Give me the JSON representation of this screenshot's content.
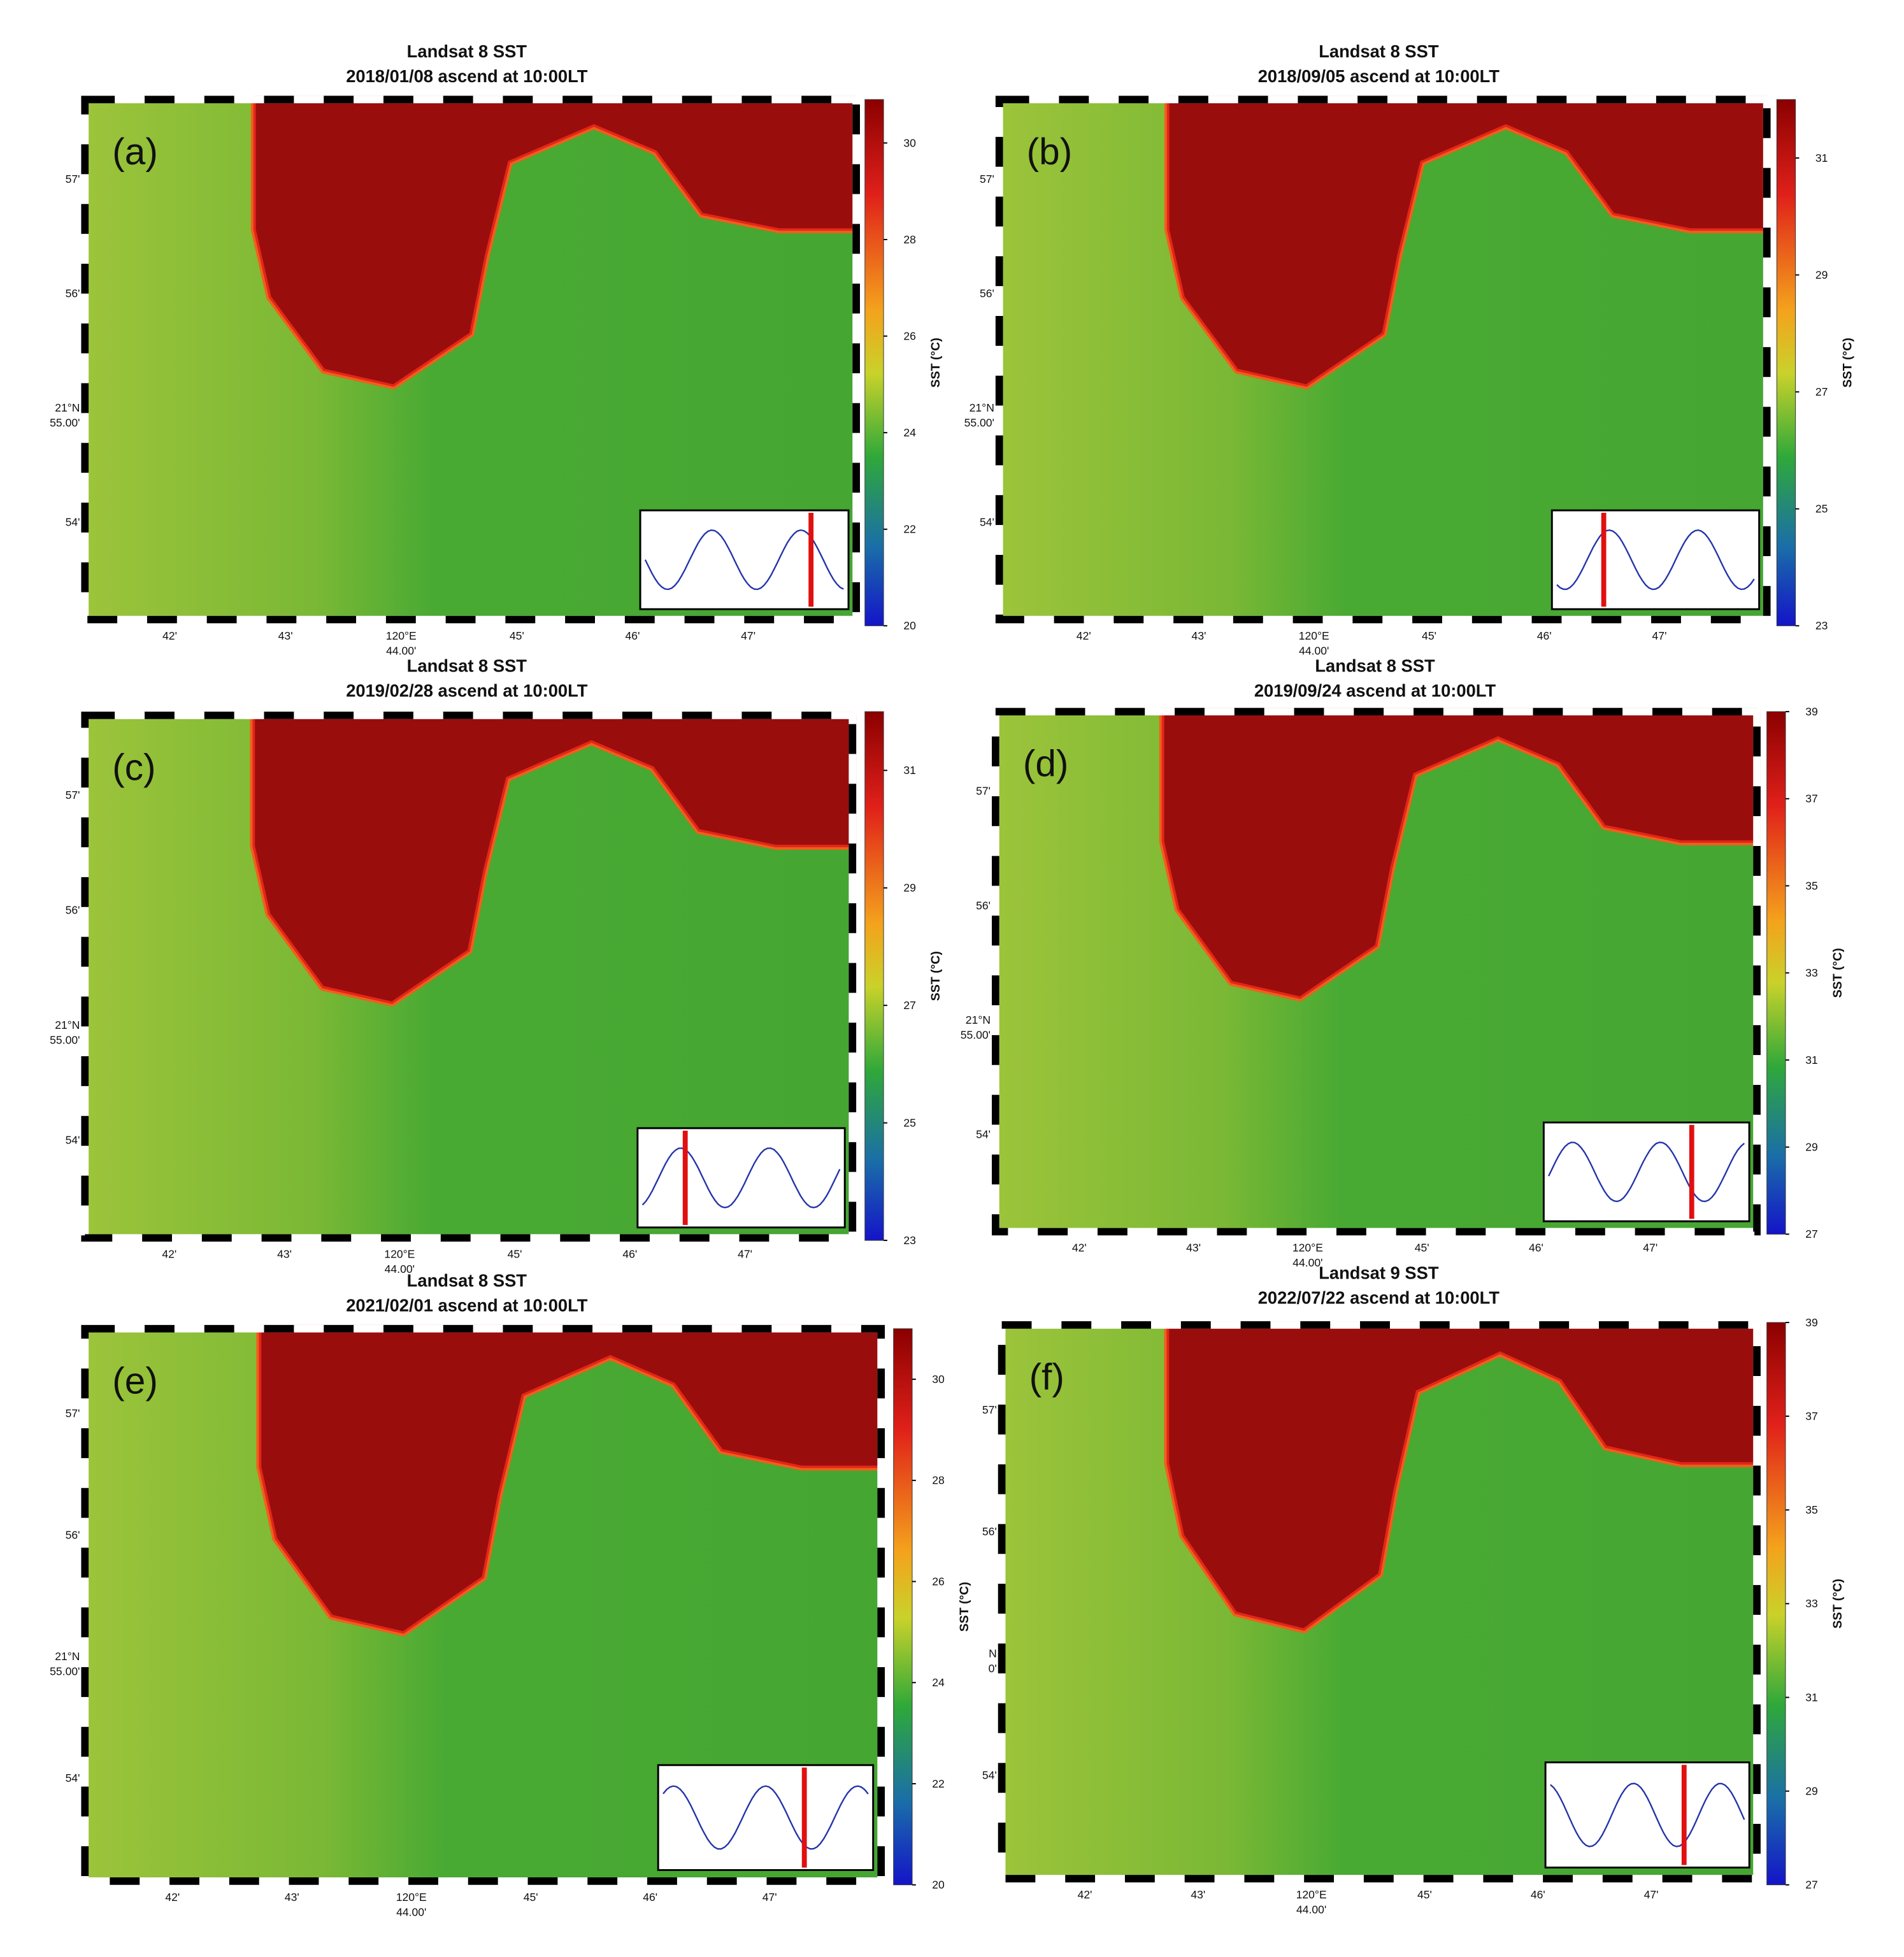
{
  "panels": [
    {
      "title": "Landsat 8 SST",
      "subtitle": "2018/01/08 ascend at 10:00LT",
      "label": "(a)",
      "colorbar": {
        "label": "SST (°C)",
        "clim": [
          20,
          30.9
        ],
        "ticks": [
          30,
          28,
          26,
          24,
          22,
          20
        ]
      },
      "xticks": [
        [
          "42'"
        ],
        [
          "43'"
        ],
        [
          "120°E",
          "44.00'"
        ],
        [
          "45'"
        ],
        [
          "46'"
        ],
        [
          "47'"
        ]
      ],
      "yticks": [
        [
          "57'"
        ],
        [
          "56'"
        ],
        [
          "21°N",
          "55.00'"
        ],
        [
          "54'"
        ]
      ]
    },
    {
      "title": "Landsat 8 SST",
      "subtitle": "2018/09/05 ascend at 10:00LT",
      "label": "(b)",
      "colorbar": {
        "label": "SST (°C)",
        "clim": [
          23,
          32
        ],
        "ticks": [
          31,
          29,
          27,
          25,
          23
        ]
      },
      "xticks": [
        [
          "42'"
        ],
        [
          "43'"
        ],
        [
          "120°E",
          "44.00'"
        ],
        [
          "45'"
        ],
        [
          "46'"
        ],
        [
          "47'"
        ]
      ],
      "yticks": [
        [
          "57'"
        ],
        [
          "56'"
        ],
        [
          "21°N",
          "55.00'"
        ],
        [
          "54'"
        ]
      ]
    },
    {
      "title": "Landsat 8 SST",
      "subtitle": "2019/02/28 ascend at 10:00LT",
      "label": "(c)",
      "colorbar": {
        "label": "SST (°C)",
        "clim": [
          23,
          32
        ],
        "ticks": [
          31,
          29,
          27,
          25,
          23
        ]
      },
      "xticks": [
        [
          "42'"
        ],
        [
          "43'"
        ],
        [
          "120°E",
          "44.00'"
        ],
        [
          "45'"
        ],
        [
          "46'"
        ],
        [
          "47'"
        ]
      ],
      "yticks": [
        [
          "57'"
        ],
        [
          "56'"
        ],
        [
          "21°N",
          "55.00'"
        ],
        [
          "54'"
        ]
      ]
    },
    {
      "title": "Landsat 8 SST",
      "subtitle": "2019/09/24 ascend at 10:00LT",
      "label": "(d)",
      "colorbar": {
        "label": "SST (°C)",
        "clim": [
          27,
          39
        ],
        "ticks": [
          39,
          37,
          35,
          33,
          31,
          29,
          27
        ]
      },
      "xticks": [
        [
          "42'"
        ],
        [
          "43'"
        ],
        [
          "120°E",
          "44.00'"
        ],
        [
          "45'"
        ],
        [
          "46'"
        ],
        [
          "47'"
        ]
      ],
      "yticks": [
        [
          "57'"
        ],
        [
          "56'"
        ],
        [
          "21°N",
          "55.00'"
        ],
        [
          "54'"
        ]
      ]
    },
    {
      "title": "Landsat 8 SST",
      "subtitle": "2021/02/01 ascend at 10:00LT",
      "label": "(e)",
      "colorbar": {
        "label": "SST (°C)",
        "clim": [
          20,
          31
        ],
        "ticks": [
          30,
          28,
          26,
          24,
          22,
          20
        ]
      },
      "xticks": [
        [
          "42'"
        ],
        [
          "43'"
        ],
        [
          "120°E",
          "44.00'"
        ],
        [
          "45'"
        ],
        [
          "46'"
        ],
        [
          "47'"
        ]
      ],
      "yticks": [
        [
          "57'"
        ],
        [
          "56'"
        ],
        [
          "21°N",
          "55.00'"
        ],
        [
          "54'"
        ]
      ]
    },
    {
      "title": "Landsat 9 SST",
      "subtitle": "2022/07/22 ascend at 10:00LT",
      "label": "(f)",
      "colorbar": {
        "label": "SST (°C)",
        "clim": [
          27,
          39
        ],
        "ticks": [
          39,
          37,
          35,
          33,
          31,
          29,
          27
        ]
      },
      "xticks": [
        [
          "42'"
        ],
        [
          "43'"
        ],
        [
          "120°E",
          "44.00'"
        ],
        [
          "45'"
        ],
        [
          "46'"
        ],
        [
          "47'"
        ]
      ],
      "yticks": [
        [
          "57'"
        ],
        [
          "56'"
        ],
        [
          "N",
          "0'"
        ],
        [
          "54'"
        ]
      ]
    }
  ]
}
